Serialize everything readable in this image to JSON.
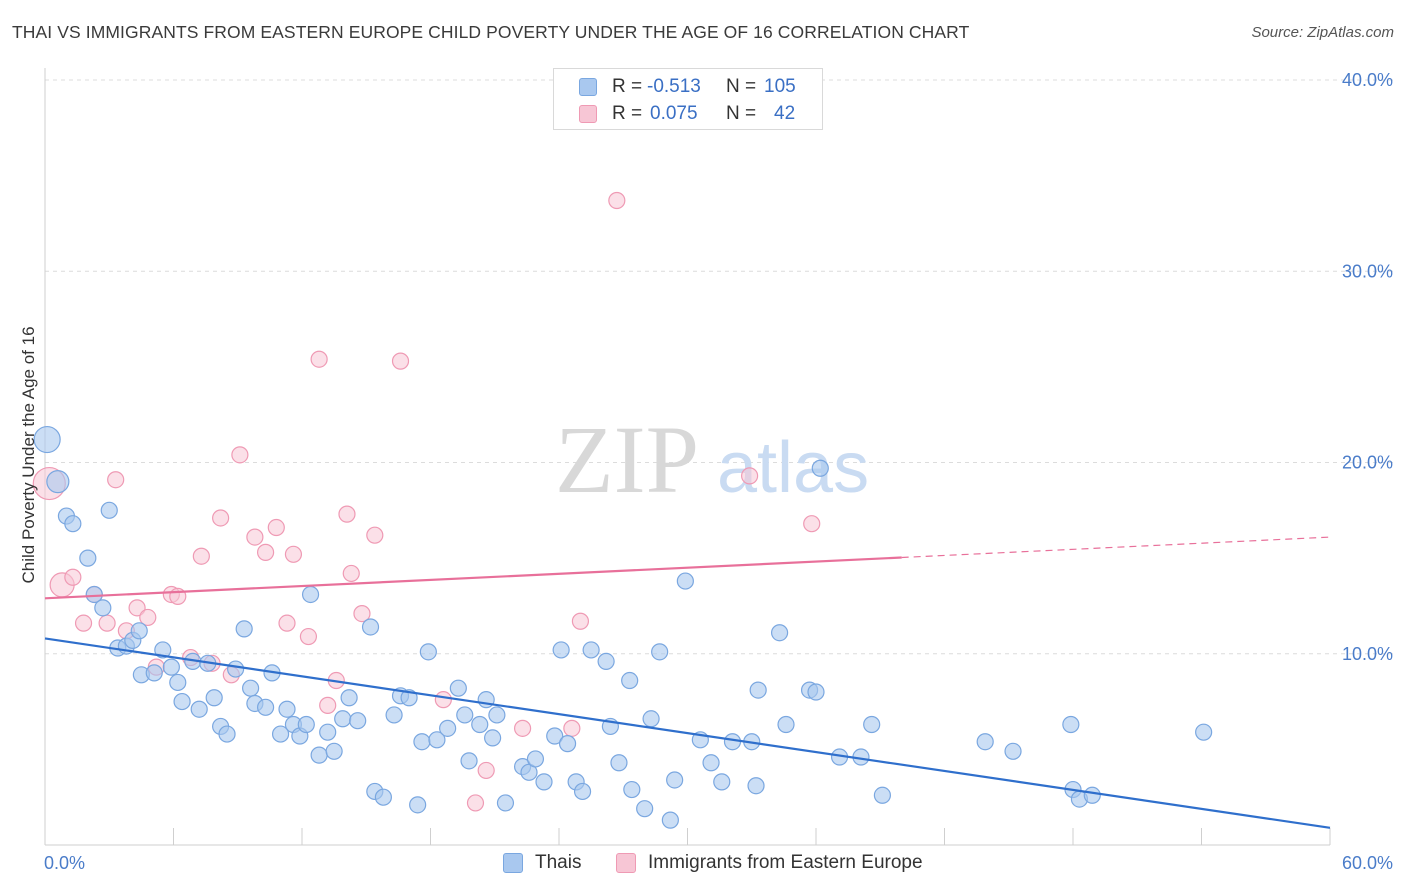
{
  "header": {
    "title": "THAI VS IMMIGRANTS FROM EASTERN EUROPE CHILD POVERTY UNDER THE AGE OF 16 CORRELATION CHART",
    "source": "Source: ZipAtlas.com"
  },
  "watermark": {
    "zip": "ZIP",
    "atlas": "atlas"
  },
  "legend": {
    "rows": [
      {
        "r_label": "R =",
        "r_value": "-0.513",
        "n_label": "N =",
        "n_value": "105"
      },
      {
        "r_label": "R =",
        "r_value": "0.075",
        "n_label": "N =",
        "n_value": "42"
      }
    ]
  },
  "bottom_legend": {
    "thais": "Thais",
    "immigrants": "Immigrants from Eastern Europe"
  },
  "colors": {
    "thais_fill": "#a9c8ef",
    "thais_stroke": "#7aa7e0",
    "thais_line": "#2f6fcc",
    "imm_fill": "#f7c6d5",
    "imm_stroke": "#ef9ab4",
    "imm_line": "#e8709a",
    "tick": "#4a7cc9",
    "grid": "#dcdcdc"
  },
  "chart_data": {
    "type": "scatter",
    "title": "THAI VS IMMIGRANTS FROM EASTERN EUROPE CHILD POVERTY UNDER THE AGE OF 16 CORRELATION CHART",
    "xlabel": "",
    "ylabel": "Child Poverty Under the Age of 16",
    "xlim": [
      0,
      60
    ],
    "ylim": [
      0,
      40
    ],
    "x_tick_labels": [
      "0.0%",
      "60.0%"
    ],
    "y_ticks": [
      10,
      20,
      30,
      40
    ],
    "y_tick_labels": [
      "10.0%",
      "20.0%",
      "30.0%",
      "40.0%"
    ],
    "grid": true,
    "legend_position": "top-center",
    "series": [
      {
        "name": "Thais",
        "R": -0.513,
        "N": 105,
        "trend": {
          "x": [
            0,
            60
          ],
          "y": [
            10.8,
            0.9
          ]
        },
        "points": [
          [
            0.1,
            21.2
          ],
          [
            0.6,
            19.0
          ],
          [
            1.0,
            17.2
          ],
          [
            1.3,
            16.8
          ],
          [
            2.0,
            15.0
          ],
          [
            2.3,
            13.1
          ],
          [
            2.7,
            12.4
          ],
          [
            3.0,
            17.5
          ],
          [
            3.4,
            10.3
          ],
          [
            3.8,
            10.4
          ],
          [
            4.1,
            10.7
          ],
          [
            4.4,
            11.2
          ],
          [
            4.5,
            8.9
          ],
          [
            5.1,
            9.0
          ],
          [
            5.5,
            10.2
          ],
          [
            5.9,
            9.3
          ],
          [
            6.2,
            8.5
          ],
          [
            6.4,
            7.5
          ],
          [
            6.9,
            9.6
          ],
          [
            7.2,
            7.1
          ],
          [
            7.6,
            9.5
          ],
          [
            7.9,
            7.7
          ],
          [
            8.2,
            6.2
          ],
          [
            8.5,
            5.8
          ],
          [
            8.9,
            9.2
          ],
          [
            9.3,
            11.3
          ],
          [
            9.6,
            8.2
          ],
          [
            9.8,
            7.4
          ],
          [
            10.3,
            7.2
          ],
          [
            10.6,
            9.0
          ],
          [
            11.0,
            5.8
          ],
          [
            11.3,
            7.1
          ],
          [
            11.6,
            6.3
          ],
          [
            11.9,
            5.7
          ],
          [
            12.2,
            6.3
          ],
          [
            12.4,
            13.1
          ],
          [
            12.8,
            4.7
          ],
          [
            13.2,
            5.9
          ],
          [
            13.5,
            4.9
          ],
          [
            13.9,
            6.6
          ],
          [
            14.2,
            7.7
          ],
          [
            14.6,
            6.5
          ],
          [
            15.2,
            11.4
          ],
          [
            15.4,
            2.8
          ],
          [
            15.8,
            2.5
          ],
          [
            16.3,
            6.8
          ],
          [
            16.6,
            7.8
          ],
          [
            17.0,
            7.7
          ],
          [
            17.4,
            2.1
          ],
          [
            17.6,
            5.4
          ],
          [
            17.9,
            10.1
          ],
          [
            18.3,
            5.5
          ],
          [
            18.8,
            6.1
          ],
          [
            19.3,
            8.2
          ],
          [
            19.6,
            6.8
          ],
          [
            19.8,
            4.4
          ],
          [
            20.3,
            6.3
          ],
          [
            20.6,
            7.6
          ],
          [
            20.9,
            5.6
          ],
          [
            21.1,
            6.8
          ],
          [
            21.5,
            2.2
          ],
          [
            22.3,
            4.1
          ],
          [
            22.6,
            3.8
          ],
          [
            22.9,
            4.5
          ],
          [
            23.3,
            3.3
          ],
          [
            23.8,
            5.7
          ],
          [
            24.1,
            10.2
          ],
          [
            24.4,
            5.3
          ],
          [
            24.8,
            3.3
          ],
          [
            25.1,
            2.8
          ],
          [
            25.5,
            10.2
          ],
          [
            26.2,
            9.6
          ],
          [
            26.4,
            6.2
          ],
          [
            26.8,
            4.3
          ],
          [
            27.3,
            8.6
          ],
          [
            28.0,
            1.9
          ],
          [
            28.3,
            6.6
          ],
          [
            28.7,
            10.1
          ],
          [
            29.2,
            1.3
          ],
          [
            29.9,
            13.8
          ],
          [
            29.4,
            3.4
          ],
          [
            30.6,
            5.5
          ],
          [
            31.1,
            4.3
          ],
          [
            31.6,
            3.3
          ],
          [
            32.1,
            5.4
          ],
          [
            33.2,
            3.1
          ],
          [
            33.3,
            8.1
          ],
          [
            34.6,
            6.3
          ],
          [
            34.3,
            11.1
          ],
          [
            35.7,
            8.1
          ],
          [
            36.2,
            19.7
          ],
          [
            37.1,
            4.6
          ],
          [
            38.1,
            4.6
          ],
          [
            38.6,
            6.3
          ],
          [
            39.1,
            2.6
          ],
          [
            43.9,
            5.4
          ],
          [
            45.2,
            4.9
          ],
          [
            48.0,
            2.9
          ],
          [
            48.3,
            2.4
          ],
          [
            48.9,
            2.6
          ],
          [
            47.9,
            6.3
          ],
          [
            54.1,
            5.9
          ],
          [
            33.0,
            5.4
          ],
          [
            36.0,
            8.0
          ],
          [
            27.4,
            2.9
          ]
        ]
      },
      {
        "name": "Immigrants from Eastern Europe",
        "R": 0.075,
        "N": 42,
        "trend": {
          "x": [
            0,
            60
          ],
          "y": [
            12.9,
            16.1
          ],
          "solid_until": 40
        },
        "points": [
          [
            0.2,
            18.9
          ],
          [
            0.8,
            13.6
          ],
          [
            1.3,
            14.0
          ],
          [
            1.8,
            11.6
          ],
          [
            2.3,
            13.1
          ],
          [
            2.9,
            11.6
          ],
          [
            3.3,
            19.1
          ],
          [
            3.8,
            11.2
          ],
          [
            4.3,
            12.4
          ],
          [
            4.8,
            11.9
          ],
          [
            5.2,
            9.3
          ],
          [
            5.9,
            13.1
          ],
          [
            6.2,
            13.0
          ],
          [
            6.8,
            9.8
          ],
          [
            7.3,
            15.1
          ],
          [
            7.8,
            9.5
          ],
          [
            8.2,
            17.1
          ],
          [
            8.7,
            8.9
          ],
          [
            9.1,
            20.4
          ],
          [
            9.8,
            16.1
          ],
          [
            10.3,
            15.3
          ],
          [
            10.8,
            16.6
          ],
          [
            11.3,
            11.6
          ],
          [
            11.6,
            15.2
          ],
          [
            12.3,
            10.9
          ],
          [
            12.8,
            25.4
          ],
          [
            13.2,
            7.3
          ],
          [
            13.6,
            8.6
          ],
          [
            14.1,
            17.3
          ],
          [
            14.3,
            14.2
          ],
          [
            14.8,
            12.1
          ],
          [
            15.4,
            16.2
          ],
          [
            16.6,
            25.3
          ],
          [
            18.6,
            7.6
          ],
          [
            20.1,
            2.2
          ],
          [
            20.6,
            3.9
          ],
          [
            22.3,
            6.1
          ],
          [
            24.6,
            6.1
          ],
          [
            25.0,
            11.7
          ],
          [
            26.7,
            33.7
          ],
          [
            32.9,
            19.3
          ],
          [
            35.8,
            16.8
          ]
        ]
      }
    ]
  }
}
